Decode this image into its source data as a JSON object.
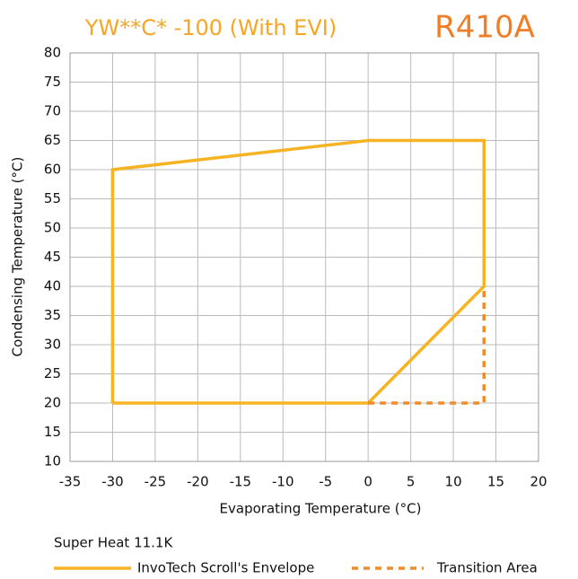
{
  "chart_data": {
    "type": "line",
    "title": "YW**C* -100 (With EVI)",
    "subtitle": "R410A",
    "xlabel": "Evaporating Temperature (°C)",
    "ylabel": "Condensing Temperature (°C)",
    "annotation": "Super Heat 11.1K",
    "xlim": [
      -35,
      20
    ],
    "ylim": [
      10,
      80
    ],
    "xticks": [
      -35,
      -30,
      -25,
      -20,
      -15,
      -10,
      -5,
      0,
      5,
      10,
      15,
      20
    ],
    "yticks": [
      10,
      15,
      20,
      25,
      30,
      35,
      40,
      45,
      50,
      55,
      60,
      65,
      70,
      75,
      80
    ],
    "grid": true,
    "legend": "bottom",
    "series": [
      {
        "name": "InvoTech Scroll's Envelope",
        "color": "#f6b323",
        "style": "solid",
        "x": [
          -30,
          -30,
          0,
          13.6,
          13.6,
          0,
          -30
        ],
        "values": [
          20,
          60,
          65,
          65,
          40,
          20,
          20
        ]
      },
      {
        "name": "Transition Area",
        "color": "#f08c2a",
        "style": "dashed",
        "x": [
          0,
          13.6,
          13.6
        ],
        "values": [
          20,
          20,
          40
        ]
      }
    ]
  }
}
